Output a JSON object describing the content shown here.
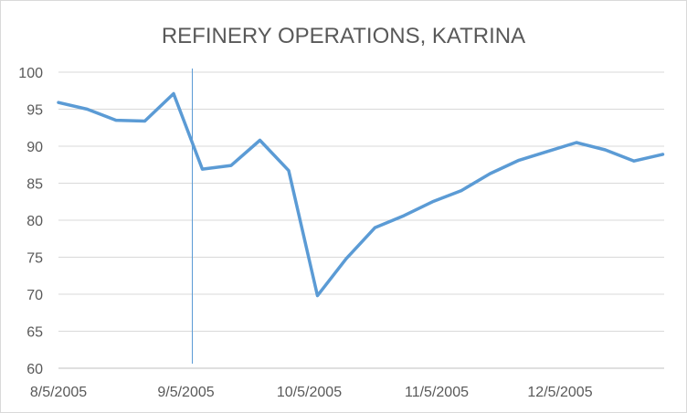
{
  "chart_data": {
    "type": "line",
    "title": "REFINERY OPERATIONS, KATRINA",
    "xlabel": "",
    "ylabel": "",
    "ylim": [
      60,
      100
    ],
    "yticks": [
      "100",
      "95",
      "90",
      "85",
      "80",
      "75",
      "70",
      "65",
      "60"
    ],
    "xlim": [
      "2005-08-05",
      "2006-01-06"
    ],
    "xticks": [
      {
        "date": "2005-08-05",
        "label": "8/5/2005"
      },
      {
        "date": "2005-09-05",
        "label": "9/5/2005"
      },
      {
        "date": "2005-10-05",
        "label": "10/5/2005"
      },
      {
        "date": "2005-11-05",
        "label": "11/5/2005"
      },
      {
        "date": "2005-12-05",
        "label": "12/5/2005"
      }
    ],
    "grid": true,
    "legend": "none",
    "marker_line": {
      "date": "2005-09-05",
      "color": "#5b9bd5"
    },
    "series": [
      {
        "color": "#5b9bd5",
        "points": [
          {
            "date": "2005-08-05",
            "value": 95.9
          },
          {
            "date": "2005-08-12",
            "value": 95.0
          },
          {
            "date": "2005-08-19",
            "value": 93.5
          },
          {
            "date": "2005-08-26",
            "value": 93.4
          },
          {
            "date": "2005-09-02",
            "value": 97.1
          },
          {
            "date": "2005-09-09",
            "value": 86.9
          },
          {
            "date": "2005-09-16",
            "value": 87.4
          },
          {
            "date": "2005-09-23",
            "value": 90.8
          },
          {
            "date": "2005-09-30",
            "value": 86.7
          },
          {
            "date": "2005-10-07",
            "value": 69.8
          },
          {
            "date": "2005-10-14",
            "value": 74.8
          },
          {
            "date": "2005-10-21",
            "value": 79.0
          },
          {
            "date": "2005-10-28",
            "value": 80.6
          },
          {
            "date": "2005-11-04",
            "value": 82.5
          },
          {
            "date": "2005-11-11",
            "value": 84.0
          },
          {
            "date": "2005-11-18",
            "value": 86.3
          },
          {
            "date": "2005-11-25",
            "value": 88.1
          },
          {
            "date": "2005-12-02",
            "value": 89.3
          },
          {
            "date": "2005-12-09",
            "value": 90.5
          },
          {
            "date": "2005-12-16",
            "value": 89.5
          },
          {
            "date": "2005-12-23",
            "value": 88.0
          },
          {
            "date": "2005-12-30",
            "value": 88.9
          }
        ]
      }
    ]
  }
}
